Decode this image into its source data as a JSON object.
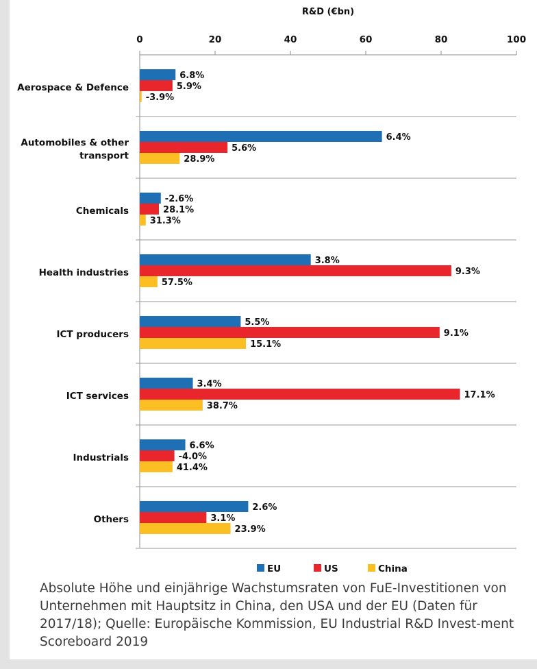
{
  "chart_data": {
    "type": "bar",
    "orientation": "horizontal",
    "title": "R&D (€bn)",
    "xlim": [
      0,
      100
    ],
    "x_ticks": [
      "0",
      "20",
      "40",
      "60",
      "80",
      "100"
    ],
    "grid": "horizontal category separators",
    "legend_position": "bottom",
    "categories": [
      "Aerospace & Defence",
      "Automobiles & other transport",
      "Chemicals",
      "Health industries",
      "ICT producers",
      "ICT services",
      "Industrials",
      "Others"
    ],
    "category_lines": [
      [
        "Aerospace & Defence"
      ],
      [
        "Automobiles & other",
        "transport"
      ],
      [
        "Chemicals"
      ],
      [
        "Health industries"
      ],
      [
        "ICT producers"
      ],
      [
        "ICT services"
      ],
      [
        "Industrials"
      ],
      [
        "Others"
      ]
    ],
    "series": [
      {
        "name": "EU",
        "color": "#1f6fb5",
        "values": [
          9.5,
          64.3,
          5.6,
          45.4,
          26.8,
          14.1,
          12.1,
          28.8
        ],
        "labels": [
          "6.8%",
          "6.4%",
          "-2.6%",
          "3.8%",
          "5.5%",
          "3.4%",
          "6.6%",
          "2.6%"
        ]
      },
      {
        "name": "US",
        "color": "#e8262b",
        "values": [
          8.7,
          23.3,
          5.1,
          82.7,
          79.6,
          85.0,
          9.2,
          17.7
        ],
        "labels": [
          "5.9%",
          "5.6%",
          "28.1%",
          "9.3%",
          "9.1%",
          "17.1%",
          "-4.0%",
          "3.1%"
        ]
      },
      {
        "name": "China",
        "color": "#fbbf24",
        "values": [
          0.5,
          10.6,
          1.6,
          4.7,
          28.2,
          16.7,
          8.7,
          24.1
        ],
        "labels": [
          "-3.9%",
          "28.9%",
          "31.3%",
          "57.5%",
          "15.1%",
          "38.7%",
          "41.4%",
          "23.9%"
        ]
      }
    ]
  },
  "caption": "Absolute Höhe und einjährige Wachstumsraten von FuE-Investitionen von Unternehmen mit Hauptsitz in China, den USA und der EU (Daten für 2017/18); Quelle: Europäische Kommission, EU Industrial R&D Invest-ment Scoreboard 2019"
}
